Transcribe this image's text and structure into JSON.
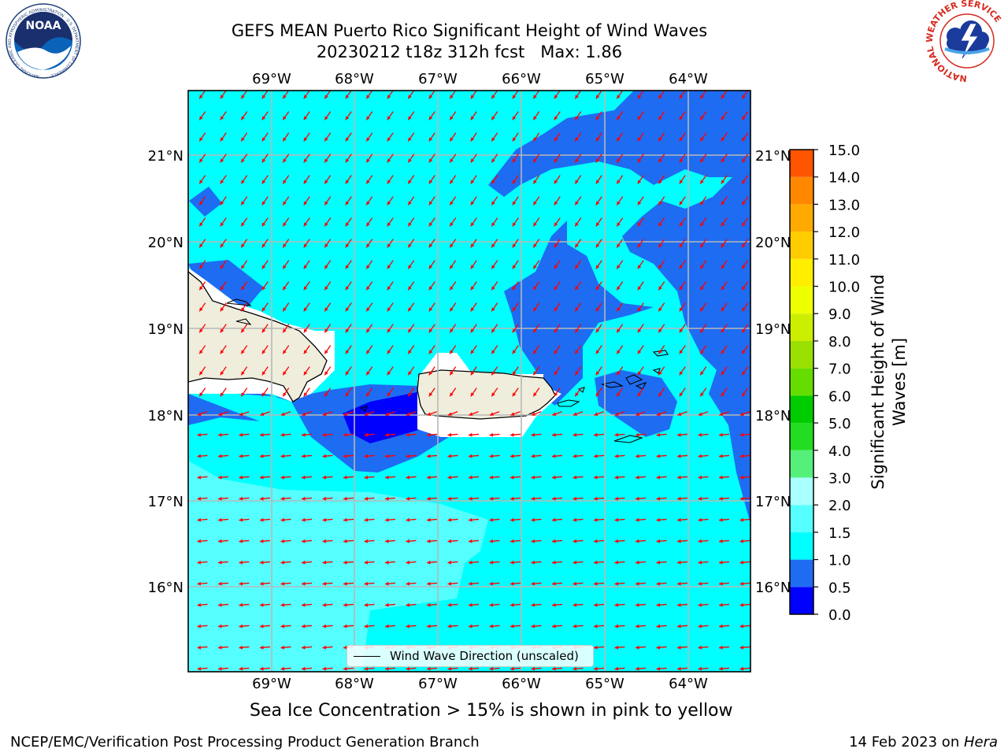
{
  "header": {
    "title_line1": "GEFS MEAN Puerto Rico Significant Height of Wind Waves",
    "title_line2": "20230212 t18z 312h fcst   Max: 1.86"
  },
  "logos": {
    "noaa_text": "NOAA",
    "noaa_ring_text": "NATIONAL OCEANIC AND ATMOSPHERIC ADMINISTRATION · U.S. DEPARTMENT OF COMMERCE",
    "nws_ring_text": "NATIONAL WEATHER SERVICE"
  },
  "map": {
    "lon_labels": [
      "69°W",
      "68°W",
      "67°W",
      "66°W",
      "65°W",
      "64°W"
    ],
    "lat_labels": [
      "21°N",
      "20°N",
      "19°N",
      "18°N",
      "17°N",
      "16°N"
    ],
    "legend_label": "Wind Wave Direction (unscaled)",
    "arrow_color": "#ff0000"
  },
  "colorbar": {
    "title": "Significant Height of Wind Waves [m]",
    "title_line1": "Significant Height of Wind",
    "title_line2": "Waves [m]",
    "tick_labels": [
      "0.0",
      "0.5",
      "1.0",
      "1.5",
      "2.0",
      "3.0",
      "4.0",
      "5.0",
      "6.0",
      "7.0",
      "8.0",
      "9.0",
      "10.0",
      "11.0",
      "12.0",
      "13.0",
      "14.0",
      "15.0"
    ],
    "colors": [
      "#0000ff",
      "#1e6cf2",
      "#00ffff",
      "#55ffff",
      "#aaffff",
      "#55f07a",
      "#22dd22",
      "#00cc00",
      "#66dd00",
      "#99e000",
      "#ccee00",
      "#eeff00",
      "#ffee00",
      "#ffcc00",
      "#ffaa00",
      "#ff8800",
      "#ff5500",
      "#ff2200",
      "#ff0000"
    ]
  },
  "footer": {
    "subtitle": "Sea Ice Concentration > 15% is shown in pink to yellow",
    "credit_left": "NCEP/EMC/Verification Post Processing Product Generation Branch",
    "credit_right_prefix": "14 Feb 2023 on ",
    "credit_right_machine": "Hera"
  },
  "chart_data": {
    "type": "heatmap",
    "title": "GEFS MEAN Puerto Rico Significant Height of Wind Waves",
    "subtitle": "20230212 t18z 312h fcst   Max: 1.86",
    "variable": "Significant Height of Wind Waves [m]",
    "max": 1.86,
    "lon_range": [
      -70,
      -63.3
    ],
    "lat_range": [
      15.0,
      21.8
    ],
    "colorbar_levels": [
      0.0,
      0.5,
      1.0,
      1.5,
      2.0,
      3.0,
      4.0,
      5.0,
      6.0,
      7.0,
      8.0,
      9.0,
      10.0,
      11.0,
      12.0,
      13.0,
      14.0,
      15.0
    ],
    "grid": true
  }
}
